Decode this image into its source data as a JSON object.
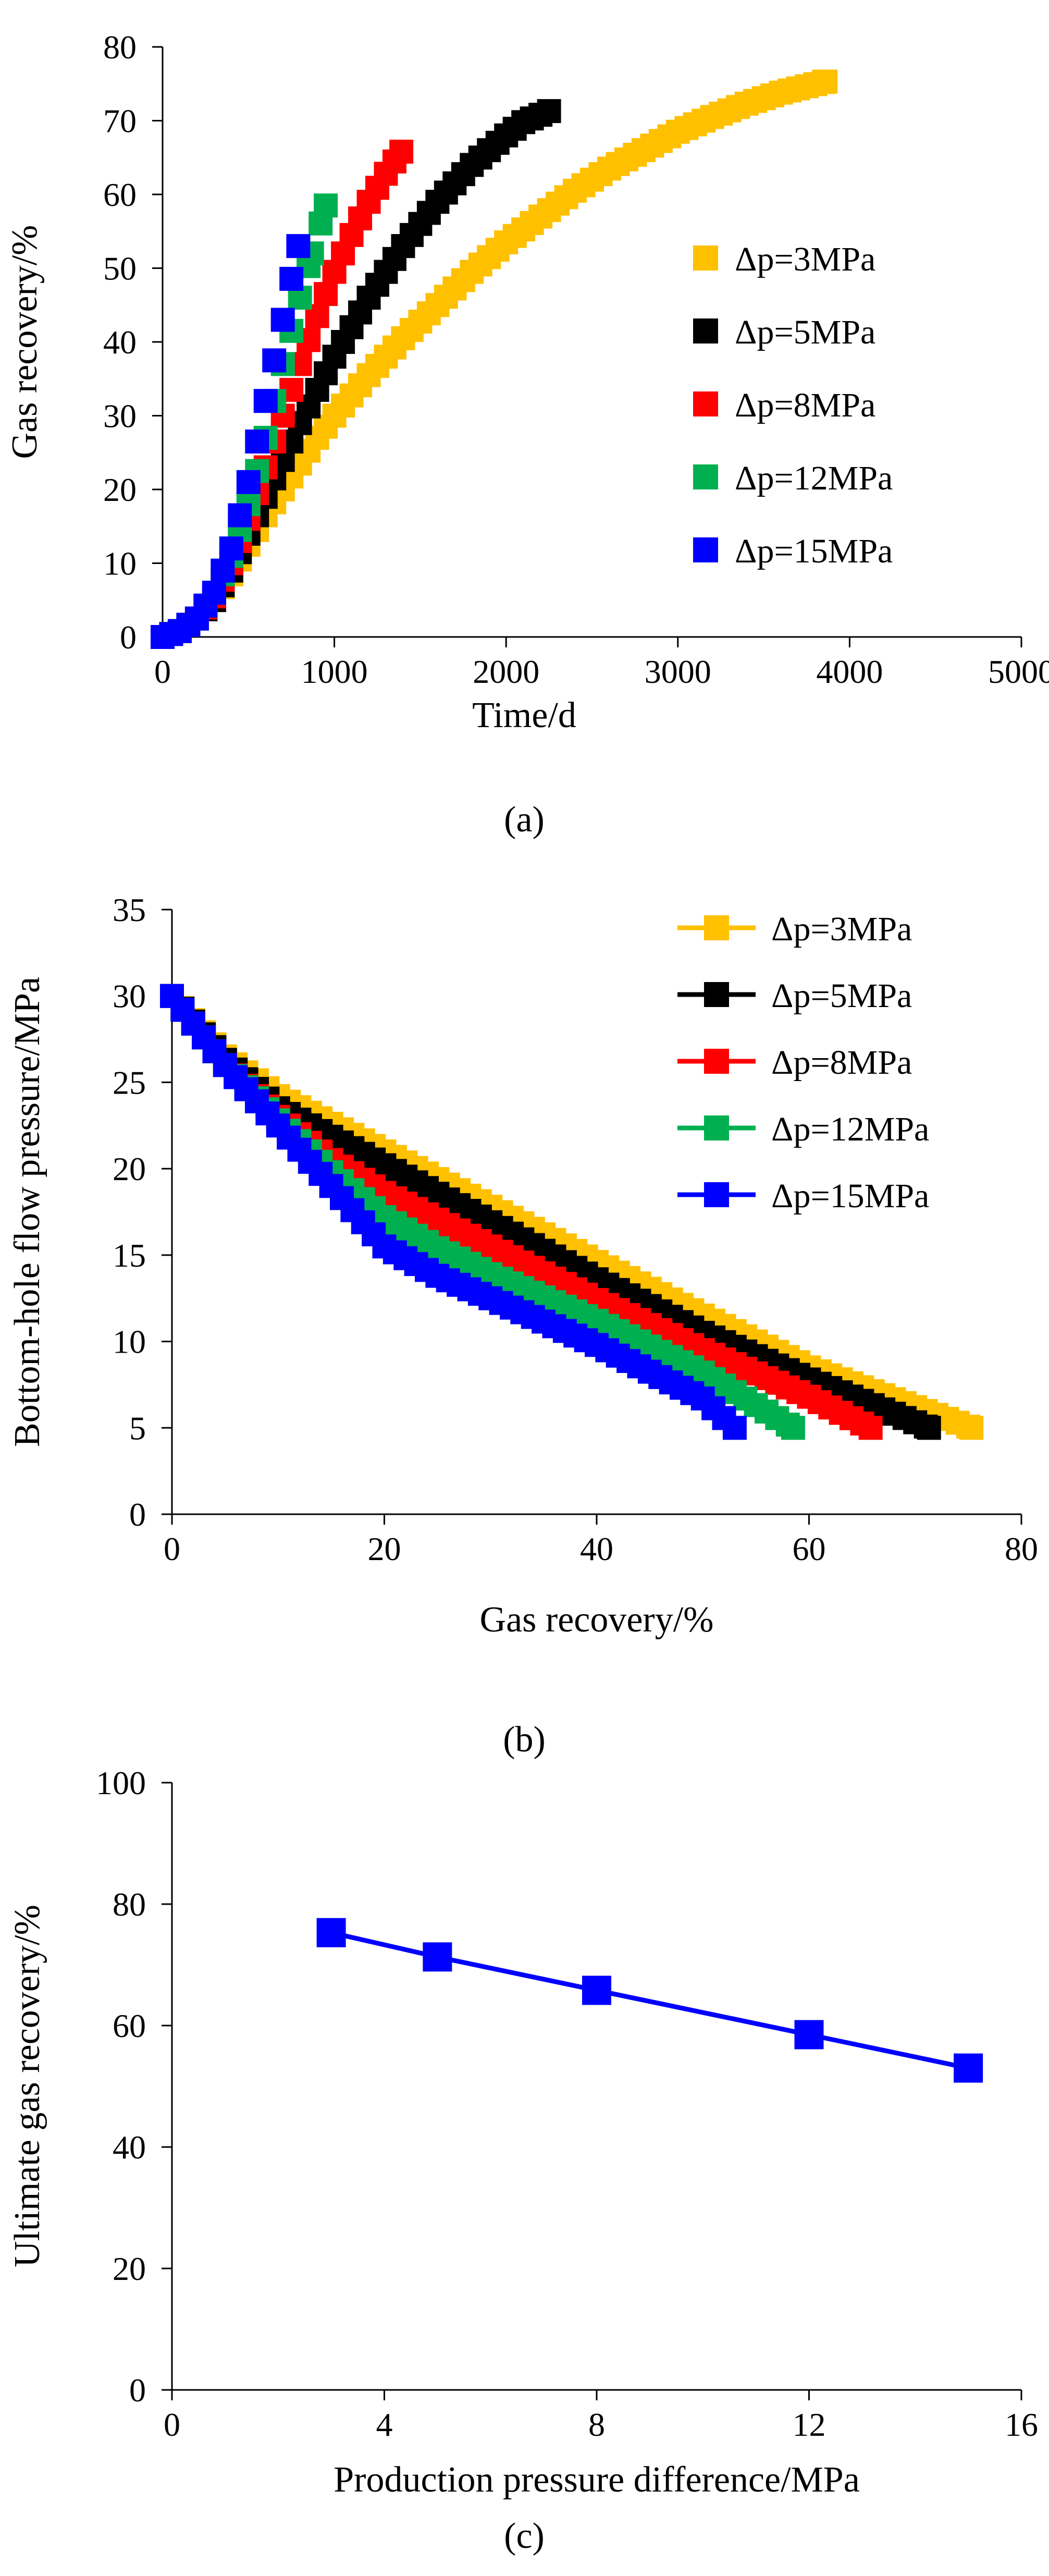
{
  "chart_data": [
    {
      "type": "scatter",
      "panel_label": "(a)",
      "xlabel": "Time/d",
      "ylabel": "Gas recovery/%",
      "xlim": [
        0,
        5000
      ],
      "ylim": [
        0,
        80
      ],
      "xticks": [
        0,
        1000,
        2000,
        3000,
        4000,
        5000
      ],
      "yticks": [
        0,
        10,
        20,
        30,
        40,
        50,
        60,
        70,
        80
      ],
      "legend_position": "right",
      "series": [
        {
          "name": "Δp=3MPa",
          "color": "#FFC000",
          "end_x": 3860,
          "end_y": 75.3,
          "pts": [
            [
              0,
              0
            ],
            [
              100,
              0.8
            ],
            [
              200,
              2.5
            ],
            [
              300,
              5
            ],
            [
              400,
              8.5
            ],
            [
              500,
              12.5
            ],
            [
              600,
              16.5
            ],
            [
              700,
              20
            ],
            [
              800,
              23.5
            ],
            [
              900,
              27
            ],
            [
              1000,
              30
            ],
            [
              1200,
              35.5
            ],
            [
              1400,
              40.5
            ],
            [
              1600,
              45
            ],
            [
              1800,
              49.5
            ],
            [
              2000,
              53.5
            ],
            [
              2200,
              57
            ],
            [
              2400,
              60.5
            ],
            [
              2600,
              63.5
            ],
            [
              2800,
              66
            ],
            [
              3000,
              68.5
            ],
            [
              3200,
              70.5
            ],
            [
              3400,
              72.3
            ],
            [
              3600,
              73.8
            ],
            [
              3860,
              75.3
            ]
          ]
        },
        {
          "name": "Δp=5MPa",
          "color": "#000000",
          "end_x": 2250,
          "end_y": 71.3,
          "pts": [
            [
              0,
              0
            ],
            [
              100,
              0.8
            ],
            [
              200,
              2.5
            ],
            [
              300,
              5
            ],
            [
              400,
              9
            ],
            [
              500,
              14
            ],
            [
              600,
              19
            ],
            [
              700,
              24
            ],
            [
              800,
              29
            ],
            [
              900,
              33.5
            ],
            [
              1000,
              38
            ],
            [
              1100,
              42
            ],
            [
              1200,
              46
            ],
            [
              1300,
              49.5
            ],
            [
              1400,
              53
            ],
            [
              1500,
              56
            ],
            [
              1600,
              59
            ],
            [
              1700,
              61.5
            ],
            [
              1800,
              64
            ],
            [
              1900,
              66
            ],
            [
              2000,
              68
            ],
            [
              2100,
              69.8
            ],
            [
              2250,
              71.3
            ]
          ]
        },
        {
          "name": "Δp=8MPa",
          "color": "#FF0000",
          "end_x": 1390,
          "end_y": 65.8,
          "pts": [
            [
              0,
              0
            ],
            [
              100,
              0.8
            ],
            [
              200,
              2.5
            ],
            [
              300,
              5.5
            ],
            [
              400,
              10
            ],
            [
              500,
              16
            ],
            [
              600,
              23
            ],
            [
              700,
              30
            ],
            [
              800,
              37
            ],
            [
              900,
              43.5
            ],
            [
              1000,
              49.5
            ],
            [
              1100,
              54.5
            ],
            [
              1200,
              59
            ],
            [
              1300,
              62.8
            ],
            [
              1390,
              65.8
            ]
          ]
        },
        {
          "name": "Δp=12MPa",
          "color": "#00B050",
          "end_x": 950,
          "end_y": 58.5,
          "pts": [
            [
              0,
              0
            ],
            [
              100,
              0.8
            ],
            [
              200,
              2.5
            ],
            [
              300,
              6
            ],
            [
              400,
              11
            ],
            [
              500,
              18
            ],
            [
              600,
              27
            ],
            [
              700,
              37
            ],
            [
              800,
              46
            ],
            [
              870,
              52
            ],
            [
              950,
              58.5
            ]
          ]
        },
        {
          "name": "Δp=15MPa",
          "color": "#0000FF",
          "end_x": 790,
          "end_y": 53.0,
          "pts": [
            [
              0,
              0
            ],
            [
              100,
              0.8
            ],
            [
              200,
              2.5
            ],
            [
              300,
              6
            ],
            [
              400,
              12
            ],
            [
              500,
              21
            ],
            [
              600,
              32
            ],
            [
              700,
              43
            ],
            [
              790,
              53
            ]
          ]
        }
      ]
    },
    {
      "type": "line",
      "panel_label": "(b)",
      "xlabel": "Gas recovery/%",
      "ylabel": "Bottom-hole flow pressure/MPa",
      "xlim": [
        0,
        80
      ],
      "ylim": [
        0,
        35
      ],
      "xticks": [
        0,
        20,
        40,
        60,
        80
      ],
      "yticks": [
        0,
        5,
        10,
        15,
        20,
        25,
        30,
        35
      ],
      "legend_position": "top-right",
      "series": [
        {
          "name": "Δp=3MPa",
          "color": "#FFC000",
          "pts": [
            [
              0,
              30
            ],
            [
              5,
              26.5
            ],
            [
              10,
              24.2
            ],
            [
              20,
              21
            ],
            [
              30,
              17.8
            ],
            [
              40,
              14.6
            ],
            [
              50,
              11.5
            ],
            [
              60,
              8.5
            ],
            [
              70,
              6.2
            ],
            [
              75.3,
              5
            ]
          ]
        },
        {
          "name": "Δp=5MPa",
          "color": "#000000",
          "pts": [
            [
              0,
              30
            ],
            [
              5,
              26.3
            ],
            [
              10,
              23.5
            ],
            [
              20,
              20.2
            ],
            [
              30,
              16.9
            ],
            [
              40,
              13.6
            ],
            [
              50,
              10.5
            ],
            [
              60,
              7.8
            ],
            [
              71.3,
              5
            ]
          ]
        },
        {
          "name": "Δp=8MPa",
          "color": "#FF0000",
          "pts": [
            [
              0,
              30
            ],
            [
              5,
              26
            ],
            [
              10,
              23
            ],
            [
              15,
              20.5
            ],
            [
              20,
              18.6
            ],
            [
              30,
              15.5
            ],
            [
              40,
              12.4
            ],
            [
              50,
              9.5
            ],
            [
              60,
              6.8
            ],
            [
              65.8,
              5
            ]
          ]
        },
        {
          "name": "Δp=12MPa",
          "color": "#00B050",
          "pts": [
            [
              0,
              30
            ],
            [
              5,
              26
            ],
            [
              10,
              22.8
            ],
            [
              15,
              19.8
            ],
            [
              20,
              17.2
            ],
            [
              25,
              15.4
            ],
            [
              30,
              13.9
            ],
            [
              40,
              11.2
            ],
            [
              50,
              8.2
            ],
            [
              58.5,
              5
            ]
          ]
        },
        {
          "name": "Δp=15MPa",
          "color": "#0000FF",
          "pts": [
            [
              0,
              30
            ],
            [
              5,
              26
            ],
            [
              10,
              22.5
            ],
            [
              15,
              19
            ],
            [
              20,
              15.5
            ],
            [
              25,
              13.8
            ],
            [
              30,
              12.5
            ],
            [
              40,
              9.8
            ],
            [
              50,
              6.7
            ],
            [
              53,
              5
            ]
          ]
        }
      ]
    },
    {
      "type": "line",
      "panel_label": "(c)",
      "xlabel": "Production pressure difference/MPa",
      "ylabel": "Ultimate gas recovery/%",
      "xlim": [
        0,
        16
      ],
      "ylim": [
        0,
        100
      ],
      "xticks": [
        0,
        4,
        8,
        12,
        16
      ],
      "yticks": [
        0,
        20,
        40,
        60,
        80,
        100
      ],
      "series": [
        {
          "name": "",
          "color": "#0000FF",
          "x": [
            3,
            5,
            8,
            12,
            15
          ],
          "y": [
            75.3,
            71.3,
            65.8,
            58.5,
            53.0
          ]
        }
      ]
    }
  ]
}
